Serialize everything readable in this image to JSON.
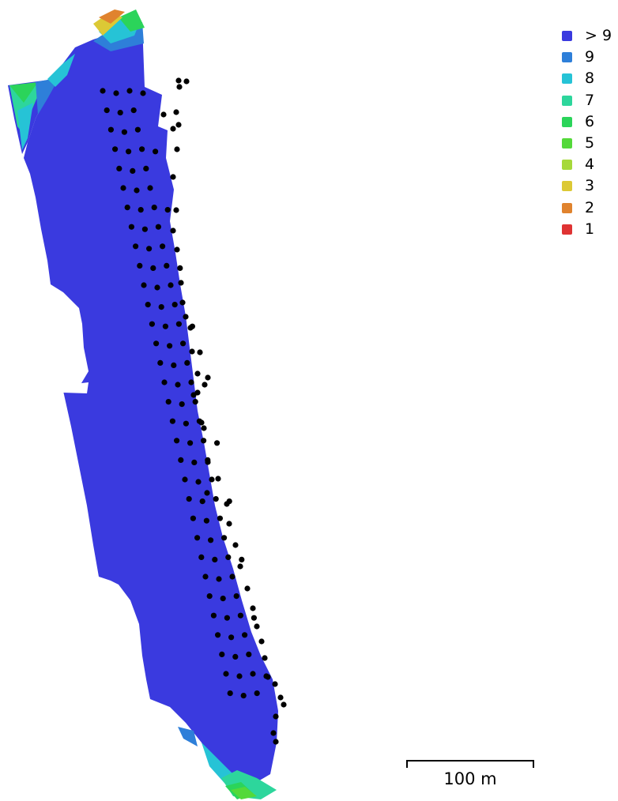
{
  "legend": {
    "items": [
      {
        "label": "> 9",
        "color": "#3a3adf"
      },
      {
        "label": "9",
        "color": "#2e7fd9"
      },
      {
        "label": "8",
        "color": "#26c3d6"
      },
      {
        "label": "7",
        "color": "#2dd69c"
      },
      {
        "label": "6",
        "color": "#2bd45a"
      },
      {
        "label": "5",
        "color": "#54d93a"
      },
      {
        "label": "4",
        "color": "#a6d93a"
      },
      {
        "label": "3",
        "color": "#dcc935"
      },
      {
        "label": "2",
        "color": "#e0832e"
      },
      {
        "label": "1",
        "color": "#df3333"
      }
    ]
  },
  "scale_bar": {
    "label": "100 m"
  },
  "camera_marker_color": "#000000"
}
